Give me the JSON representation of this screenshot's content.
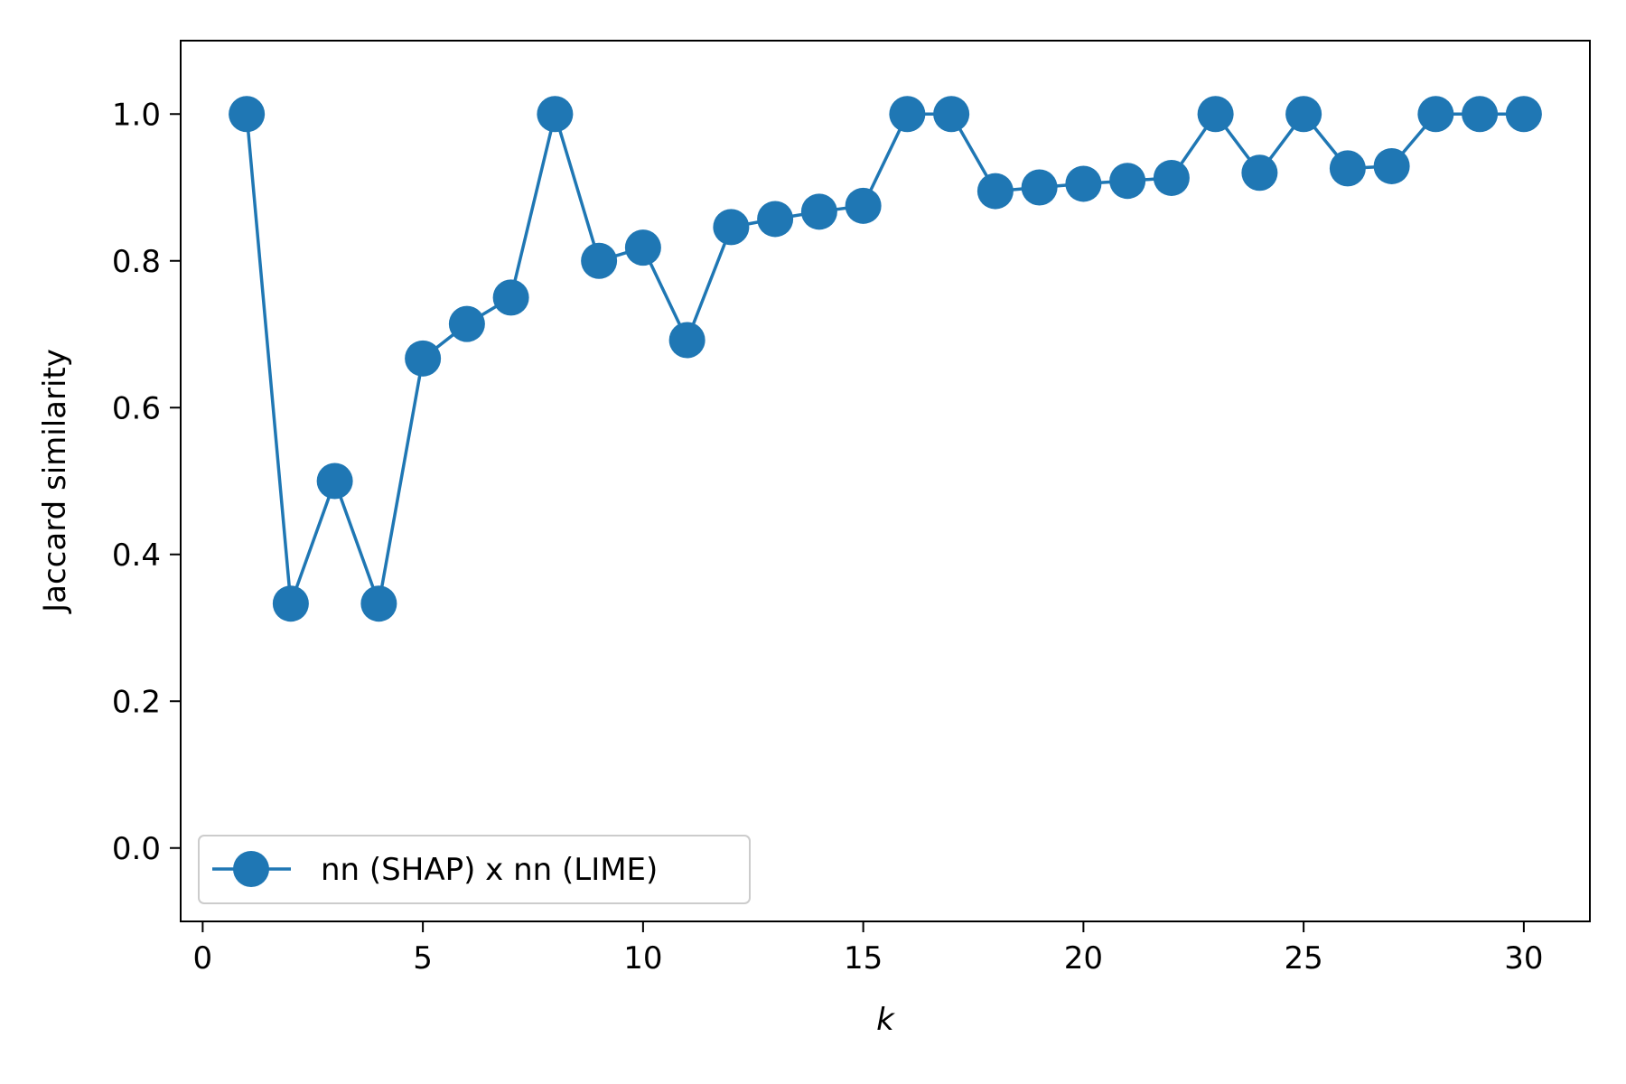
{
  "chart_data": {
    "type": "line",
    "xlabel": "k",
    "ylabel": "Jaccard similarity",
    "xlim": [
      -0.5,
      31.5
    ],
    "ylim": [
      -0.1,
      1.1
    ],
    "xticks": [
      0,
      5,
      10,
      15,
      20,
      25,
      30
    ],
    "xtick_labels": [
      "0",
      "5",
      "10",
      "15",
      "20",
      "25",
      "30"
    ],
    "yticks": [
      0.0,
      0.2,
      0.4,
      0.6,
      0.8,
      1.0
    ],
    "ytick_labels": [
      "0.0",
      "0.2",
      "0.4",
      "0.6",
      "0.8",
      "1.0"
    ],
    "grid": false,
    "legend_position": "lower-left",
    "series": [
      {
        "name": "nn (SHAP) x nn (LIME)",
        "color": "#1f77b4",
        "marker": "circle",
        "x": [
          1,
          2,
          3,
          4,
          5,
          6,
          7,
          8,
          9,
          10,
          11,
          12,
          13,
          14,
          15,
          16,
          17,
          18,
          19,
          20,
          21,
          22,
          23,
          24,
          25,
          26,
          27,
          28,
          29,
          30
        ],
        "y": [
          1.0,
          0.333,
          0.5,
          0.333,
          0.667,
          0.714,
          0.75,
          1.0,
          0.8,
          0.818,
          0.692,
          0.846,
          0.857,
          0.867,
          0.875,
          1.0,
          1.0,
          0.895,
          0.9,
          0.905,
          0.909,
          0.913,
          1.0,
          0.92,
          1.0,
          0.926,
          0.929,
          1.0,
          1.0,
          1.0
        ]
      }
    ]
  }
}
